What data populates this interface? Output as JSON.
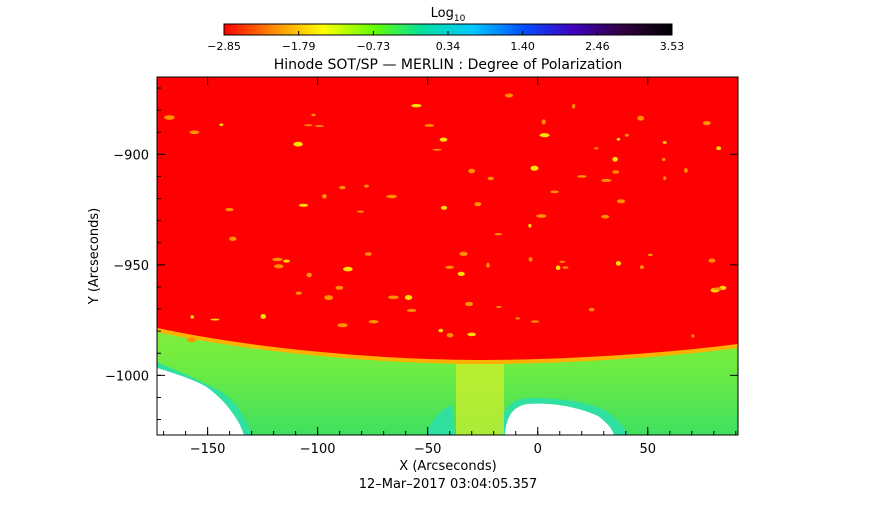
{
  "chart_data": {
    "type": "heatmap",
    "title": "Hinode SOT/SP — MERLIN : Degree of Polarization",
    "xlabel": "X (Arcseconds)",
    "ylabel": "Y (Arcseconds)",
    "timestamp": "12–Mar–2017 03:04:05.357",
    "colorbar": {
      "label_base": "Log",
      "label_sub": "10",
      "ticks": [
        "−2.85",
        "−1.79",
        "−0.73",
        "0.34",
        "1.40",
        "2.46",
        "3.53"
      ],
      "range": [
        -2.85,
        3.53
      ],
      "colors": [
        "#ff0000",
        "#ff8c00",
        "#ffff00",
        "#66ff00",
        "#00e0a0",
        "#00c8ff",
        "#0050ff",
        "#4000c0",
        "#300040",
        "#000000"
      ]
    },
    "xlim": [
      -173,
      91
    ],
    "ylim": [
      -1027,
      -865
    ],
    "x_ticks": [
      {
        "value": -150,
        "label": "−150"
      },
      {
        "value": -100,
        "label": "−100"
      },
      {
        "value": -50,
        "label": "−50"
      },
      {
        "value": 0,
        "label": "0"
      },
      {
        "value": 50,
        "label": "50"
      }
    ],
    "y_ticks": [
      {
        "value": -900,
        "label": "−900"
      },
      {
        "value": -950,
        "label": "−950"
      },
      {
        "value": -1000,
        "label": "−1000"
      }
    ],
    "limb": {
      "description_color": "#ff0000",
      "off_disk_colors": [
        "#e8f020",
        "#a0f030",
        "#30e080",
        "#20c8ff",
        "#ffffff"
      ]
    }
  }
}
